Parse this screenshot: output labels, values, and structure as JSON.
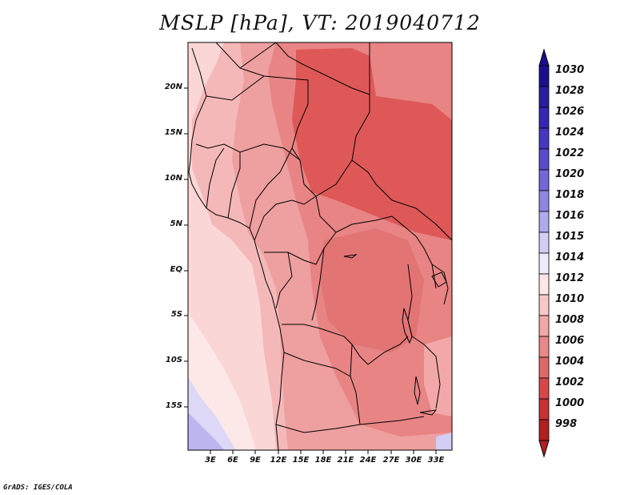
{
  "title": "MSLP [hPa], VT: 2019040712",
  "credit": "GrADS: IGES/COLA",
  "lat_labels": [
    "20N",
    "15N",
    "10N",
    "5N",
    "EQ",
    "5S",
    "10S",
    "15S"
  ],
  "lon_labels": [
    "3E",
    "6E",
    "9E",
    "12E",
    "15E",
    "18E",
    "21E",
    "24E",
    "27E",
    "30E",
    "33E"
  ],
  "colorbar": {
    "levels": [
      "1030",
      "1028",
      "1026",
      "1024",
      "1022",
      "1020",
      "1018",
      "1016",
      "1015",
      "1014",
      "1012",
      "1010",
      "1008",
      "1006",
      "1004",
      "1002",
      "1000",
      "998"
    ],
    "colors": [
      "#1c0f8c",
      "#2a1ea0",
      "#3527b2",
      "#4636c0",
      "#5a4ccc",
      "#7367d8",
      "#8f86e2",
      "#b0a9ec",
      "#d2cef4",
      "#eeecfb",
      "#fde6e6",
      "#f8c8c8",
      "#f2a8a8",
      "#e88888",
      "#e06868",
      "#d64848",
      "#c83232",
      "#b02020"
    ],
    "top_color": "#1c0f8c",
    "bottom_color": "#b02020"
  }
}
